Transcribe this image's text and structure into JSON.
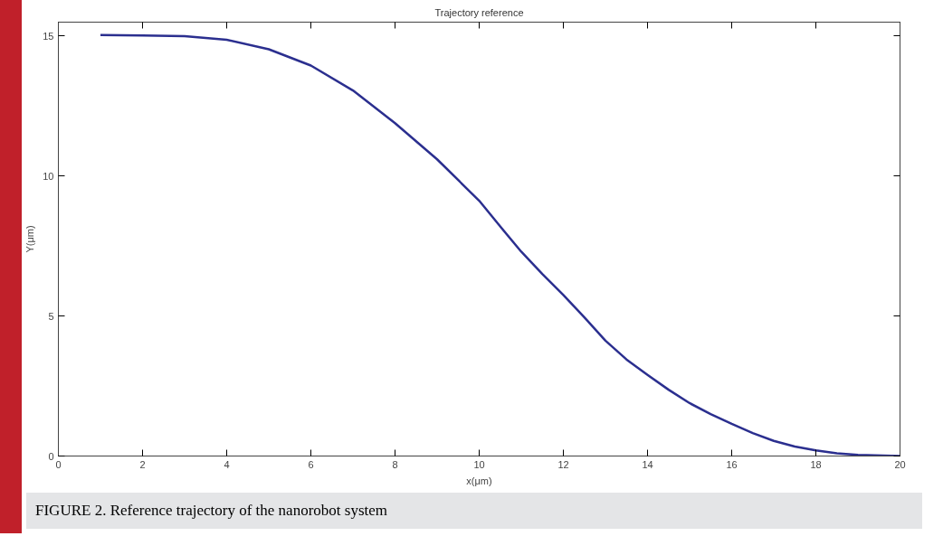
{
  "chart_data": {
    "type": "line",
    "title": "Trajectory reference",
    "xlabel": "x(μm)",
    "ylabel": "Y(μm)",
    "x": [
      1,
      2,
      3,
      4,
      5,
      6,
      7,
      8,
      9,
      10,
      10.5,
      11,
      11.5,
      12,
      12.5,
      13,
      13.5,
      14,
      14.5,
      15,
      15.5,
      16,
      16.5,
      17,
      17.5,
      18,
      18.5,
      19,
      20
    ],
    "series": [
      {
        "color": "#2b2f8f",
        "values": [
          15.04,
          15.02,
          15.0,
          14.87,
          14.53,
          13.95,
          13.06,
          11.89,
          10.6,
          9.12,
          8.2,
          7.3,
          6.5,
          5.75,
          4.95,
          4.12,
          3.45,
          2.9,
          2.37,
          1.89,
          1.5,
          1.15,
          0.82,
          0.54,
          0.34,
          0.2,
          0.1,
          0.04,
          0.0
        ]
      }
    ],
    "xlim": [
      0,
      20
    ],
    "ylim": [
      0,
      15.5
    ],
    "xticks": [
      0,
      2,
      4,
      6,
      8,
      10,
      12,
      14,
      16,
      18,
      20
    ],
    "yticks": [
      0,
      5,
      10,
      15
    ],
    "grid": false,
    "line_style": "solid",
    "annotations": [
      "FIGURE 2. Reference trajectory of the nanorobot system"
    ]
  }
}
